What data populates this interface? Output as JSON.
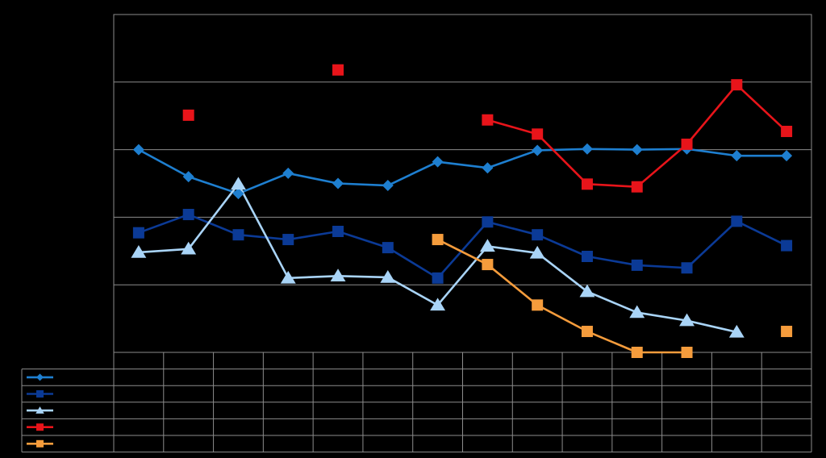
{
  "chart_data": {
    "type": "line",
    "categories": [
      "",
      "",
      "",
      "",
      "",
      "",
      "",
      "",
      "",
      "",
      "",
      "",
      "",
      ""
    ],
    "ylim": [
      0,
      5
    ],
    "grid": true,
    "legend": "data-table-left",
    "background": "#000000",
    "series": [
      {
        "color": "#1E7FD0",
        "marker": "diamond",
        "values": [
          3.0,
          2.6,
          2.35,
          2.65,
          2.5,
          2.47,
          2.82,
          2.73,
          2.99,
          3.01,
          3.0,
          3.01,
          2.91,
          2.91
        ]
      },
      {
        "color": "#0B3A96",
        "marker": "square",
        "values": [
          1.77,
          2.04,
          1.74,
          1.67,
          1.79,
          1.55,
          1.1,
          1.93,
          1.74,
          1.42,
          1.29,
          1.25,
          1.94,
          1.58
        ]
      },
      {
        "color": "#A9D4F7",
        "marker": "triangle",
        "values": [
          1.48,
          1.53,
          2.49,
          1.1,
          1.13,
          1.11,
          0.7,
          1.57,
          1.47,
          0.9,
          0.59,
          0.47,
          0.3,
          null
        ]
      },
      {
        "color": "#E8141A",
        "marker": "square",
        "values": [
          null,
          3.51,
          null,
          null,
          4.18,
          null,
          null,
          3.44,
          3.23,
          2.49,
          2.45,
          3.08,
          3.96,
          3.27
        ]
      },
      {
        "color": "#F59C3C",
        "marker": "square",
        "values": [
          null,
          null,
          null,
          null,
          null,
          null,
          1.67,
          1.3,
          0.7,
          0.31,
          0.0,
          0.0,
          null,
          0.31
        ]
      }
    ]
  }
}
